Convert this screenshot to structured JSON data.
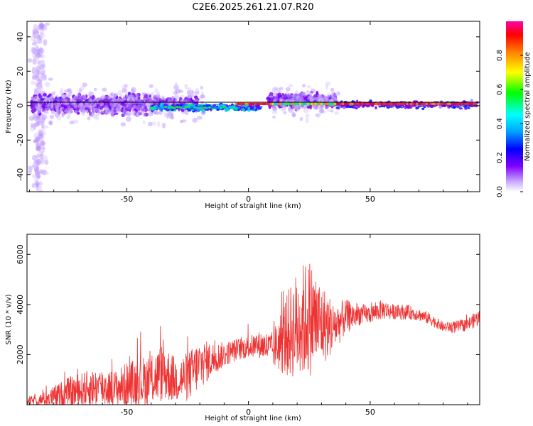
{
  "title": "C2E6.2025.261.21.07.R20",
  "chart_data": [
    {
      "type": "heatmap",
      "title": "C2E6.2025.261.21.07.R20",
      "xlabel": "Height of straight line (km)",
      "ylabel": "Frequency (Hz)",
      "xlim": [
        -91,
        95
      ],
      "ylim": [
        -50,
        49
      ],
      "xticks": [
        -50,
        0,
        50
      ],
      "yticks": [
        -40,
        -20,
        0,
        20,
        40
      ],
      "xtick_labels": [
        "-50",
        "0",
        "50"
      ],
      "ytick_labels": [
        "-40",
        "-20",
        "0",
        "20",
        "40"
      ],
      "reference_line_hz": 0,
      "description_of_energy": "Strong narrow-band energy near 0-2 Hz across all heights; broad scatter (±15 Hz) between -88 and -20 km and between 10 and 30 km; vertical band of weak energy near -85 km spanning full frequency range.",
      "colorbar": {
        "label": "Normalized spectral amplitude",
        "range": [
          0,
          1
        ],
        "ticks": [
          0.0,
          0.2,
          0.4,
          0.6,
          0.8
        ],
        "tick_labels": [
          "0.0",
          "0.2",
          "0.4",
          "0.6",
          "0.8"
        ]
      }
    },
    {
      "type": "line",
      "xlabel": "Height of straight line (km)",
      "ylabel": "SNR (10 * v/v)",
      "xlim": [
        -91,
        95
      ],
      "ylim": [
        0,
        6800
      ],
      "xticks": [
        -50,
        0,
        50
      ],
      "yticks": [
        2000,
        4000,
        6000
      ],
      "xtick_labels": [
        "-50",
        "0",
        "50"
      ],
      "ytick_labels": [
        "2000",
        "4000",
        "6000"
      ],
      "series": [
        {
          "name": "SNR",
          "color": "#ee3333",
          "x": [
            -91,
            -85,
            -80,
            -75,
            -70,
            -65,
            -60,
            -55,
            -50,
            -45,
            -40,
            -35,
            -30,
            -25,
            -20,
            -15,
            -10,
            -5,
            0,
            5,
            10,
            15,
            20,
            25,
            30,
            35,
            40,
            45,
            50,
            55,
            60,
            65,
            70,
            75,
            80,
            85,
            90,
            95
          ],
          "y": [
            150,
            200,
            300,
            450,
            550,
            650,
            700,
            650,
            800,
            900,
            1000,
            1300,
            1000,
            1100,
            1600,
            1800,
            2000,
            2200,
            2300,
            2400,
            2200,
            2700,
            3200,
            3500,
            3200,
            3100,
            3500,
            3600,
            3600,
            3800,
            3700,
            3700,
            3600,
            3400,
            3100,
            3100,
            3200,
            3500
          ],
          "spread": [
            150,
            250,
            450,
            600,
            700,
            750,
            800,
            700,
            900,
            1000,
            1000,
            1200,
            900,
            1000,
            1000,
            700,
            500,
            450,
            450,
            550,
            700,
            1600,
            2200,
            2400,
            1700,
            1000,
            700,
            450,
            350,
            400,
            300,
            300,
            250,
            250,
            200,
            250,
            250,
            350
          ]
        }
      ]
    }
  ]
}
